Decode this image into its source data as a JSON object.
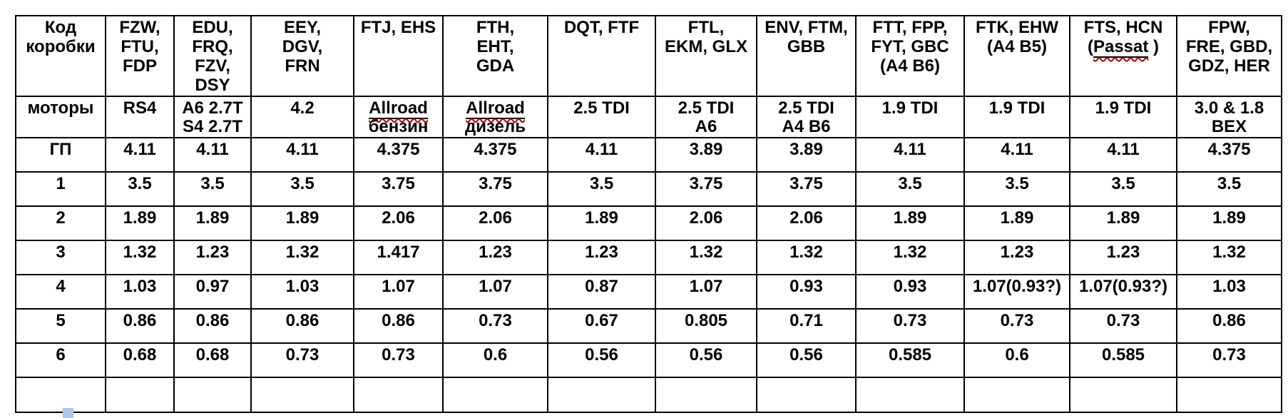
{
  "document": {
    "background_color": "#ffffff",
    "border_color": "#000000",
    "spellcheck_squiggle_color": "#b40000",
    "marker_color": "#a9c8ec"
  },
  "table": {
    "rows": [
      {
        "id": "header",
        "cells": [
          [
            "Код",
            "коробки"
          ],
          [
            "FZW,",
            "FTU,",
            "FDP"
          ],
          [
            "EDU,",
            "FRQ,",
            "FZV,",
            "DSY"
          ],
          [
            "EEY,",
            "DGV,",
            "FRN"
          ],
          [
            "FTJ, EHS"
          ],
          [
            "FTH,",
            "EHT,",
            "GDA"
          ],
          [
            "DQT, FTF"
          ],
          [
            "FTL,",
            "EKM, GLX"
          ],
          [
            "ENV, FTM,",
            "GBB"
          ],
          [
            "FTT, FPP,",
            "FYT, GBC",
            "(A4 B6)"
          ],
          [
            "FTK, EHW",
            "(A4 B5)"
          ],
          [
            "FTS, HCN",
            [
              "(",
              {
                "text": "Passat",
                "misspelled": true
              },
              " )"
            ]
          ],
          [
            "FPW,",
            "FRE, GBD,",
            "GDZ, HER"
          ]
        ]
      },
      {
        "id": "motors",
        "cells": [
          [
            "моторы"
          ],
          [
            "RS4"
          ],
          [
            "A6 2.7T",
            "S4 2.7T"
          ],
          [
            "4.2"
          ],
          [
            [
              {
                "text": "Allroad",
                "misspelled": true
              }
            ],
            "бензин"
          ],
          [
            [
              {
                "text": "Allroad",
                "misspelled": true
              }
            ],
            "дизель"
          ],
          [
            "2.5 TDI"
          ],
          [
            "2.5 TDI",
            "A6"
          ],
          [
            "2.5 TDI",
            "A4 B6"
          ],
          [
            "1.9 TDI"
          ],
          [
            "1.9 TDI"
          ],
          [
            "1.9 TDI"
          ],
          [
            "3.0 & 1.8",
            "BEX"
          ]
        ]
      },
      {
        "id": "final-drive",
        "cells": [
          "ГП",
          "4.11",
          "4.11",
          "4.11",
          "4.375",
          "4.375",
          "4.11",
          "3.89",
          "3.89",
          "4.11",
          "4.11",
          "4.11",
          "4.375"
        ]
      },
      {
        "id": "gear-1",
        "cells": [
          "1",
          "3.5",
          "3.5",
          "3.5",
          "3.75",
          "3.75",
          "3.5",
          "3.75",
          "3.75",
          "3.5",
          "3.5",
          "3.5",
          "3.5"
        ]
      },
      {
        "id": "gear-2",
        "cells": [
          "2",
          "1.89",
          "1.89",
          "1.89",
          "2.06",
          "2.06",
          "1.89",
          "2.06",
          "2.06",
          "1.89",
          "1.89",
          "1.89",
          "1.89"
        ]
      },
      {
        "id": "gear-3",
        "cells": [
          "3",
          "1.32",
          "1.23",
          "1.32",
          "1.417",
          "1.23",
          "1.23",
          "1.32",
          "1.32",
          "1.32",
          "1.23",
          "1.23",
          "1.32"
        ]
      },
      {
        "id": "gear-4",
        "cells": [
          "4",
          "1.03",
          "0.97",
          "1.03",
          "1.07",
          "1.07",
          "0.87",
          "1.07",
          "0.93",
          "0.93",
          "1.07(0.93?)",
          "1.07(0.93?)",
          "1.03"
        ]
      },
      {
        "id": "gear-5",
        "cells": [
          "5",
          "0.86",
          "0.86",
          "0.86",
          "0.86",
          "0.73",
          "0.67",
          "0.805",
          "0.71",
          "0.73",
          "0.73",
          "0.73",
          "0.86"
        ]
      },
      {
        "id": "gear-6",
        "cells": [
          "6",
          "0.68",
          "0.68",
          "0.73",
          "0.73",
          "0.6",
          "0.56",
          "0.56",
          "0.56",
          "0.585",
          "0.6",
          "0.585",
          "0.73"
        ]
      },
      {
        "id": "empty",
        "cells": [
          "",
          "",
          "",
          "",
          "",
          "",
          "",
          "",
          "",
          "",
          "",
          "",
          ""
        ]
      }
    ]
  }
}
